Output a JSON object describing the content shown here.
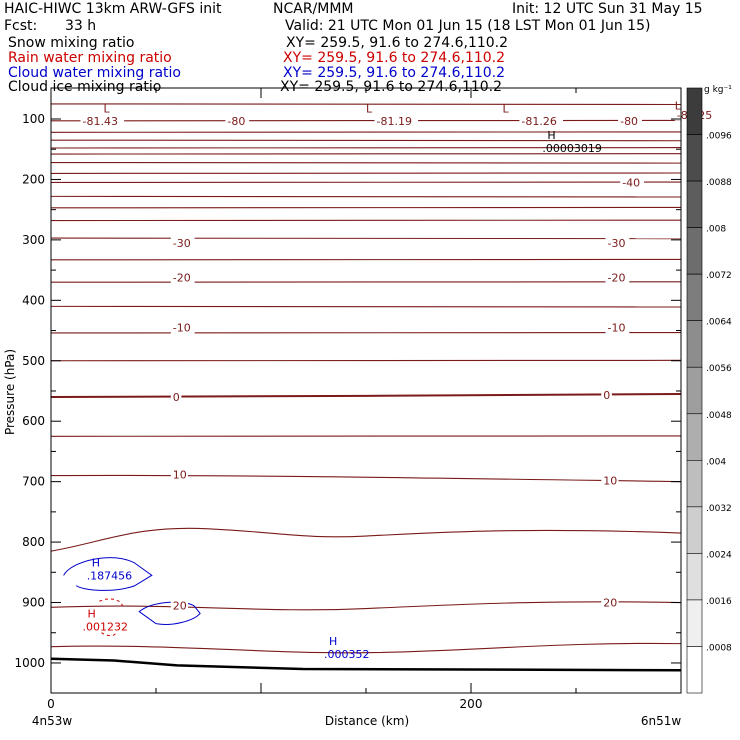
{
  "header": {
    "title": "HAIC-HIWC 13km ARW-GFS init",
    "org": "NCAR/MMM",
    "init": "Init: 12 UTC Sun 31 May 15",
    "fcst_label": "Fcst:",
    "fcst_value": "33 h",
    "valid": "Valid: 21 UTC Mon 01 Jun 15 (18 LST Mon 01 Jun 15)"
  },
  "fields": [
    {
      "name": "Snow mixing ratio",
      "xy": "XY= 259.5, 91.6 to 274.6,110.2",
      "color": "#000000"
    },
    {
      "name": "Rain water mixing ratio",
      "xy": "XY= 259.5, 91.6 to 274.6,110.2",
      "color": "#cc0000"
    },
    {
      "name": "Cloud water mixing ratio",
      "xy": "XY= 259.5, 91.6 to 274.6,110.2",
      "color": "#0000cc"
    },
    {
      "name": "Cloud ice mixing ratio",
      "xy": "XY= 259.5, 91.6 to 274.6,110.2",
      "color": "#000000"
    }
  ],
  "colors": {
    "temperature": "#7a1a1a",
    "rain": "#cc0000",
    "cloud_water": "#0000cc",
    "terrain": "#000000"
  },
  "chart_data": {
    "type": "line",
    "xlabel": "Distance (km)",
    "ylabel": "Pressure (hPa)",
    "xlim": [
      0,
      300
    ],
    "ylim": [
      1050,
      50
    ],
    "x_ticks": [
      0,
      200
    ],
    "y_ticks": [
      100,
      200,
      300,
      400,
      500,
      600,
      700,
      800,
      900,
      1000
    ],
    "x_endpoints": {
      "left": "4n53w",
      "right": "6n51w"
    },
    "temperature_levels": [
      {
        "p": 75
      },
      {
        "p": 103
      },
      {
        "p": 122
      },
      {
        "p": 135
      },
      {
        "p": 148
      },
      {
        "p": 158
      },
      {
        "p": 172
      },
      {
        "p": 190
      },
      {
        "p": 205
      },
      {
        "p": 228
      },
      {
        "p": 247
      },
      {
        "p": 268
      },
      {
        "p": 297
      },
      {
        "p": 333
      },
      {
        "p": 370
      },
      {
        "p": 410
      },
      {
        "p": 454
      },
      {
        "p": 500
      },
      {
        "p": 560
      },
      {
        "p": 625
      },
      {
        "p": 690
      },
      {
        "p": 780
      },
      {
        "p": 905
      },
      {
        "p": 970
      }
    ],
    "temperature_labels": [
      {
        "text": "-81.43",
        "x": 15,
        "p": 103
      },
      {
        "text": "-80",
        "x": 84,
        "p": 103
      },
      {
        "text": "-81.19",
        "x": 155,
        "p": 103
      },
      {
        "text": "-81.26",
        "x": 224,
        "p": 103
      },
      {
        "text": "-80",
        "x": 271,
        "p": 103
      },
      {
        "text": "-81.25",
        "x": 298,
        "p": 93
      },
      {
        "text": "-40",
        "x": 272,
        "p": 205
      },
      {
        "text": "-30",
        "x": 58,
        "p": 305
      },
      {
        "text": "-30",
        "x": 265,
        "p": 305
      },
      {
        "text": "-20",
        "x": 58,
        "p": 362
      },
      {
        "text": "-20",
        "x": 265,
        "p": 362
      },
      {
        "text": "-10",
        "x": 58,
        "p": 445
      },
      {
        "text": "-10",
        "x": 265,
        "p": 445
      },
      {
        "text": "0",
        "x": 58,
        "p": 560
      },
      {
        "text": "0",
        "x": 263,
        "p": 557
      },
      {
        "text": "10",
        "x": 58,
        "p": 688
      },
      {
        "text": "10",
        "x": 263,
        "p": 698
      },
      {
        "text": "20",
        "x": 58,
        "p": 905
      },
      {
        "text": "20",
        "x": 263,
        "p": 900
      }
    ],
    "lows": [
      {
        "text": "L",
        "x": 25,
        "p": 83
      },
      {
        "text": "L",
        "x": 150,
        "p": 83
      },
      {
        "text": "L",
        "x": 215,
        "p": 83
      },
      {
        "text": "L",
        "x": 297,
        "p": 78
      }
    ],
    "snow_max": {
      "text": ".00003019",
      "x": 234,
      "p": 148
    },
    "cloud_water_maxima": [
      {
        "text": ".187456",
        "x": 17,
        "p": 855
      },
      {
        "text": ".000352",
        "x": 130,
        "p": 985
      }
    ],
    "rain_max": {
      "text": ".001232",
      "x": 15,
      "p": 940
    },
    "colorbar": {
      "unit": "g kg⁻¹",
      "labels": [
        ".0096",
        ".0088",
        ".008",
        ".0072",
        ".0064",
        ".0056",
        ".0048",
        ".004",
        ".0032",
        ".0024",
        ".0016",
        ".0008"
      ]
    }
  }
}
